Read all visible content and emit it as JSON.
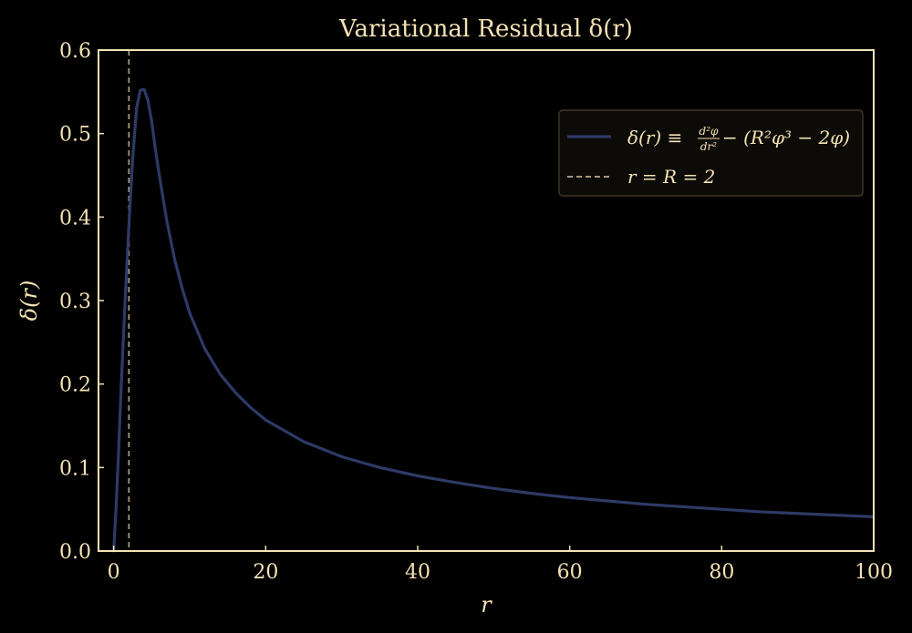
{
  "chart_data": {
    "type": "line",
    "title": "Variational Residual δ(r)",
    "xlabel": "r",
    "ylabel": "δ(r)",
    "xlim": [
      -2,
      100
    ],
    "ylim": [
      0.0,
      0.6
    ],
    "xticks": [
      0,
      20,
      40,
      60,
      80,
      100
    ],
    "xtick_labels": [
      "0",
      "20",
      "40",
      "60",
      "80",
      "100"
    ],
    "yticks": [
      0.0,
      0.1,
      0.2,
      0.3,
      0.4,
      0.5,
      0.6
    ],
    "ytick_labels": [
      "0.0",
      "0.1",
      "0.2",
      "0.3",
      "0.4",
      "0.5",
      "0.6"
    ],
    "grid": false,
    "legend_position": "upper-right",
    "colors": {
      "background": "#000000",
      "frame": "#f3e2b3",
      "text": "#f3e2b3",
      "series": "#2e3a66",
      "reference": "#a8967a",
      "legend_box": "#0c0b08",
      "legend_edge": "#3d3727"
    },
    "series": [
      {
        "name": "δ(r) ≡ d²φ/dr² − (R²φ³ − 2φ)",
        "name_parts": {
          "lhs": "δ(r) ≡ ",
          "frac_num": "d²φ",
          "frac_den": "dr²",
          "rhs": " − (R²φ³ − 2φ)"
        },
        "style": "solid",
        "x": [
          0,
          0.3,
          0.6,
          1,
          1.5,
          2,
          2.5,
          3,
          3.5,
          4,
          4.5,
          5,
          5.5,
          6,
          7,
          8,
          9,
          10,
          12,
          14,
          16,
          18,
          20,
          25,
          30,
          35,
          40,
          45,
          50,
          55,
          60,
          65,
          70,
          75,
          80,
          85,
          90,
          95,
          100
        ],
        "y": [
          0.0,
          0.05,
          0.11,
          0.2,
          0.3,
          0.39,
          0.47,
          0.53,
          0.552,
          0.553,
          0.54,
          0.515,
          0.48,
          0.45,
          0.395,
          0.35,
          0.315,
          0.285,
          0.242,
          0.212,
          0.19,
          0.172,
          0.157,
          0.131,
          0.113,
          0.1,
          0.09,
          0.082,
          0.075,
          0.069,
          0.064,
          0.06,
          0.056,
          0.053,
          0.05,
          0.047,
          0.045,
          0.043,
          0.041
        ]
      }
    ],
    "reference_lines": [
      {
        "orientation": "vertical",
        "x": 2,
        "style": "dashed",
        "name": "r = R = 2"
      }
    ]
  }
}
